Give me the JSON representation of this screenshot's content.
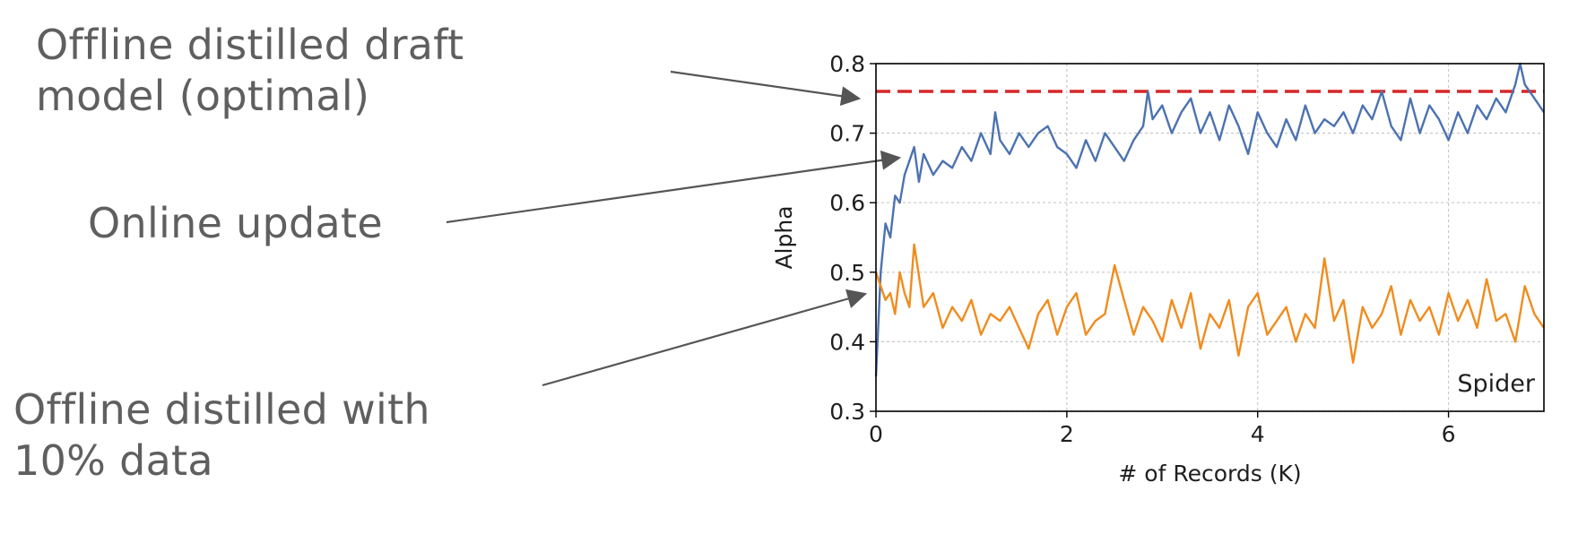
{
  "callouts": {
    "offline_optimal": {
      "line1": "Offline distilled draft",
      "line2": "model (optimal)"
    },
    "online_update": {
      "line1": "Online update"
    },
    "offline_10pct": {
      "line1": "Offline distilled with",
      "line2": "10% data"
    }
  },
  "chart_data": {
    "type": "line",
    "title": "",
    "xlabel": "# of Records (K)",
    "ylabel": "Alpha",
    "xlim": [
      0,
      7
    ],
    "ylim": [
      0.3,
      0.8
    ],
    "xticks": [
      0,
      2,
      4,
      6
    ],
    "yticks": [
      0.3,
      0.4,
      0.5,
      0.6,
      0.7,
      0.8
    ],
    "xtick_labels": [
      "0",
      "2",
      "4",
      "6"
    ],
    "ytick_labels": [
      "0.3",
      "0.4",
      "0.5",
      "0.6",
      "0.7",
      "0.8"
    ],
    "grid": true,
    "annotation": "Spider",
    "annotation_position": "bottom-right",
    "series": [
      {
        "style": "dashed",
        "color": "#d62728",
        "x": [
          0,
          7
        ],
        "values": [
          0.76,
          0.76
        ]
      },
      {
        "style": "solid",
        "color": "#4c72b0",
        "x": [
          0,
          0.05,
          0.1,
          0.15,
          0.2,
          0.25,
          0.3,
          0.35,
          0.4,
          0.45,
          0.5,
          0.6,
          0.7,
          0.8,
          0.9,
          1.0,
          1.1,
          1.2,
          1.25,
          1.3,
          1.4,
          1.5,
          1.6,
          1.7,
          1.8,
          1.9,
          2.0,
          2.1,
          2.2,
          2.3,
          2.4,
          2.5,
          2.6,
          2.7,
          2.8,
          2.85,
          2.9,
          3.0,
          3.1,
          3.2,
          3.3,
          3.4,
          3.5,
          3.6,
          3.7,
          3.8,
          3.9,
          4.0,
          4.1,
          4.2,
          4.3,
          4.4,
          4.5,
          4.6,
          4.7,
          4.8,
          4.9,
          5.0,
          5.1,
          5.2,
          5.3,
          5.4,
          5.5,
          5.6,
          5.7,
          5.8,
          5.9,
          6.0,
          6.1,
          6.2,
          6.3,
          6.4,
          6.5,
          6.6,
          6.7,
          6.75,
          6.8,
          6.9,
          7.0
        ],
        "values": [
          0.35,
          0.5,
          0.57,
          0.55,
          0.61,
          0.6,
          0.64,
          0.66,
          0.68,
          0.63,
          0.67,
          0.64,
          0.66,
          0.65,
          0.68,
          0.66,
          0.7,
          0.67,
          0.73,
          0.69,
          0.67,
          0.7,
          0.68,
          0.7,
          0.71,
          0.68,
          0.67,
          0.65,
          0.69,
          0.66,
          0.7,
          0.68,
          0.66,
          0.69,
          0.71,
          0.76,
          0.72,
          0.74,
          0.7,
          0.73,
          0.75,
          0.7,
          0.73,
          0.69,
          0.74,
          0.71,
          0.67,
          0.73,
          0.7,
          0.68,
          0.72,
          0.69,
          0.74,
          0.7,
          0.72,
          0.71,
          0.73,
          0.7,
          0.74,
          0.72,
          0.76,
          0.71,
          0.69,
          0.75,
          0.7,
          0.74,
          0.72,
          0.69,
          0.73,
          0.7,
          0.74,
          0.72,
          0.75,
          0.73,
          0.77,
          0.8,
          0.77,
          0.75,
          0.73
        ]
      },
      {
        "style": "solid",
        "color": "#f08c1e",
        "x": [
          0,
          0.05,
          0.1,
          0.15,
          0.2,
          0.25,
          0.3,
          0.35,
          0.4,
          0.5,
          0.6,
          0.7,
          0.8,
          0.9,
          1.0,
          1.1,
          1.2,
          1.3,
          1.4,
          1.5,
          1.6,
          1.7,
          1.8,
          1.9,
          2.0,
          2.1,
          2.2,
          2.3,
          2.4,
          2.5,
          2.6,
          2.7,
          2.8,
          2.9,
          3.0,
          3.1,
          3.2,
          3.3,
          3.4,
          3.5,
          3.6,
          3.7,
          3.8,
          3.9,
          4.0,
          4.1,
          4.2,
          4.3,
          4.4,
          4.5,
          4.6,
          4.7,
          4.8,
          4.9,
          5.0,
          5.1,
          5.2,
          5.3,
          5.4,
          5.5,
          5.6,
          5.7,
          5.8,
          5.9,
          6.0,
          6.1,
          6.2,
          6.3,
          6.4,
          6.5,
          6.6,
          6.7,
          6.8,
          6.9,
          7.0
        ],
        "values": [
          0.5,
          0.48,
          0.46,
          0.47,
          0.44,
          0.5,
          0.47,
          0.45,
          0.54,
          0.45,
          0.47,
          0.42,
          0.45,
          0.43,
          0.46,
          0.41,
          0.44,
          0.43,
          0.45,
          0.42,
          0.39,
          0.44,
          0.46,
          0.41,
          0.45,
          0.47,
          0.41,
          0.43,
          0.44,
          0.51,
          0.46,
          0.41,
          0.45,
          0.43,
          0.4,
          0.46,
          0.42,
          0.47,
          0.39,
          0.44,
          0.42,
          0.46,
          0.38,
          0.45,
          0.47,
          0.41,
          0.43,
          0.45,
          0.4,
          0.44,
          0.42,
          0.52,
          0.43,
          0.46,
          0.37,
          0.45,
          0.42,
          0.44,
          0.48,
          0.41,
          0.46,
          0.43,
          0.45,
          0.41,
          0.47,
          0.43,
          0.46,
          0.42,
          0.49,
          0.43,
          0.44,
          0.4,
          0.48,
          0.44,
          0.42
        ]
      }
    ]
  }
}
